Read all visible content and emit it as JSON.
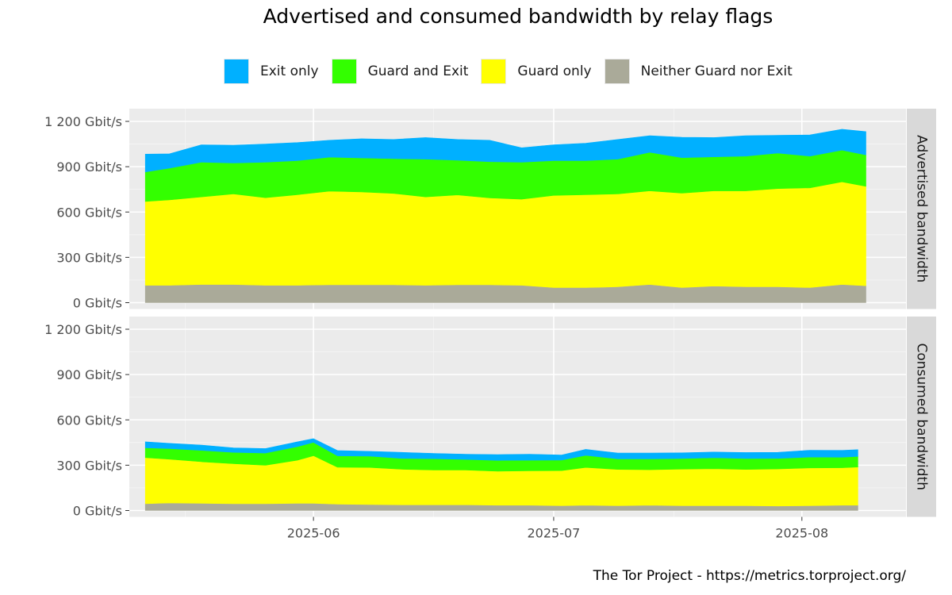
{
  "chart_data": {
    "type": "area",
    "title": "Advertised and consumed bandwidth by relay flags",
    "caption": "The Tor Project - https://metrics.torproject.org/",
    "xlabel": "",
    "ylabel": "",
    "stacking": "stacked",
    "legend_position": "top",
    "grid": true,
    "x_ticks": [
      "2025-06",
      "2025-07",
      "2025-08"
    ],
    "y_ticks": [
      "0 Gbit/s",
      "300 Gbit/s",
      "600 Gbit/s",
      "900 Gbit/s",
      "1 200 Gbit/s"
    ],
    "ylim": [
      0,
      1200
    ],
    "xlim": [
      "2025-05-09",
      "2025-08-14"
    ],
    "colors": {
      "neither": "#aaaa99",
      "guard_only": "#ffff00",
      "guard_and_exit": "#33ff00",
      "exit_only": "#00b0ff",
      "panel_bg": "#ebebeb",
      "strip_bg": "#d9d9d9"
    },
    "legend": [
      {
        "key": "exit_only",
        "label": "Exit only"
      },
      {
        "key": "guard_and_exit",
        "label": "Guard and Exit"
      },
      {
        "key": "guard_only",
        "label": "Guard only"
      },
      {
        "key": "neither",
        "label": "Neither Guard nor Exit"
      }
    ],
    "panels": [
      {
        "label": "Advertised bandwidth",
        "x": [
          "2025-05-11",
          "2025-05-14",
          "2025-05-18",
          "2025-05-22",
          "2025-05-26",
          "2025-05-30",
          "2025-06-03",
          "2025-06-07",
          "2025-06-11",
          "2025-06-15",
          "2025-06-19",
          "2025-06-23",
          "2025-06-27",
          "2025-07-01",
          "2025-07-05",
          "2025-07-09",
          "2025-07-13",
          "2025-07-17",
          "2025-07-21",
          "2025-07-25",
          "2025-07-29",
          "2025-08-02",
          "2025-08-06",
          "2025-08-09"
        ],
        "series": [
          {
            "key": "neither",
            "name": "Neither Guard nor Exit",
            "values": [
              115,
              115,
              120,
              120,
              115,
              115,
              118,
              118,
              118,
              115,
              118,
              118,
              115,
              100,
              100,
              105,
              120,
              100,
              110,
              105,
              105,
              100,
              120,
              112
            ]
          },
          {
            "key": "guard_only",
            "name": "Guard only",
            "values": [
              555,
              565,
              580,
              600,
              580,
              600,
              620,
              615,
              605,
              585,
              595,
              575,
              570,
              610,
              615,
              615,
              620,
              625,
              630,
              635,
              650,
              660,
              680,
              658
            ]
          },
          {
            "key": "guard_and_exit",
            "name": "Guard and Exit",
            "values": [
              195,
              210,
              230,
              205,
              235,
              225,
              225,
              225,
              230,
              250,
              230,
              240,
              245,
              230,
              225,
              230,
              255,
              235,
              225,
              230,
              235,
              210,
              210,
              208
            ]
          },
          {
            "key": "exit_only",
            "name": "Exit only",
            "values": [
              118,
              95,
              115,
              117,
              120,
              120,
              112,
              127,
              127,
              143,
              137,
              142,
              95,
              105,
              115,
              130,
              110,
              135,
              128,
              135,
              118,
              140,
              138,
              154
            ]
          }
        ]
      },
      {
        "label": "Consumed bandwidth",
        "x": [
          "2025-05-11",
          "2025-05-14",
          "2025-05-18",
          "2025-05-22",
          "2025-05-26",
          "2025-05-30",
          "2025-06-01",
          "2025-06-04",
          "2025-06-08",
          "2025-06-12",
          "2025-06-16",
          "2025-06-20",
          "2025-06-24",
          "2025-06-28",
          "2025-07-02",
          "2025-07-05",
          "2025-07-09",
          "2025-07-13",
          "2025-07-17",
          "2025-07-21",
          "2025-07-25",
          "2025-07-29",
          "2025-08-02",
          "2025-08-06",
          "2025-08-08"
        ],
        "series": [
          {
            "key": "neither",
            "name": "Neither Guard nor Exit",
            "values": [
              45,
              50,
              48,
              45,
              45,
              48,
              48,
              42,
              40,
              38,
              38,
              38,
              35,
              35,
              32,
              35,
              32,
              35,
              32,
              32,
              32,
              30,
              32,
              35,
              35
            ]
          },
          {
            "key": "guard_only",
            "name": "Guard only",
            "values": [
              305,
              290,
              275,
              265,
              255,
              285,
              315,
              245,
              245,
              235,
              230,
              230,
              225,
              228,
              232,
              250,
              240,
              235,
              242,
              245,
              240,
              245,
              250,
              248,
              253
            ]
          },
          {
            "key": "guard_and_exit",
            "name": "Guard and Exit",
            "values": [
              65,
              70,
              75,
              75,
              80,
              90,
              88,
              75,
              75,
              72,
              75,
              70,
              72,
              70,
              70,
              80,
              70,
              72,
              70,
              72,
              72,
              70,
              72,
              70,
              70
            ]
          },
          {
            "key": "exit_only",
            "name": "Exit only",
            "values": [
              40,
              35,
              35,
              30,
              30,
              32,
              25,
              35,
              32,
              40,
              35,
              35,
              38,
              40,
              33,
              40,
              38,
              38,
              38,
              38,
              40,
              40,
              45,
              45,
              45
            ]
          }
        ]
      }
    ]
  }
}
